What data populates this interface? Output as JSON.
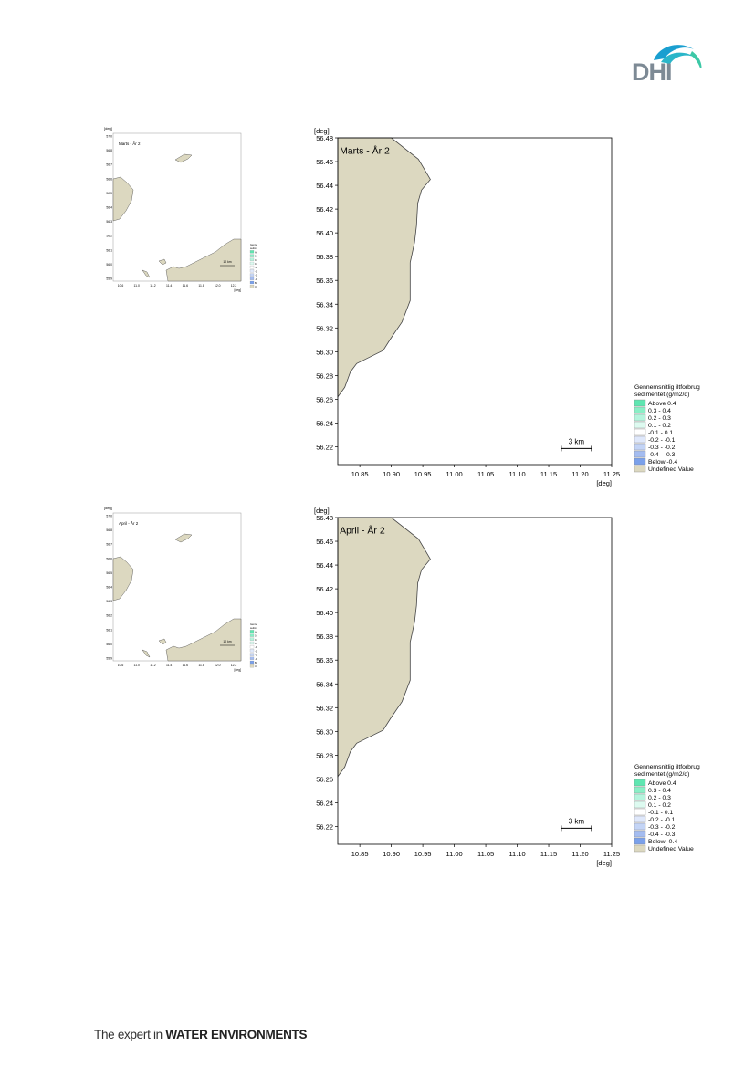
{
  "brand": {
    "logo_text": "DHI",
    "tagline_prefix": "The expert in ",
    "tagline_bold": "WATER ENVIRONMENTS"
  },
  "colors": {
    "land": "#dcd8c0",
    "coast": "#444444",
    "scale_bar": "#000000"
  },
  "legend": {
    "title_line1": "Gennemsnitlig iltforbrug",
    "title_line2": "sedimentet (g/m2/d)",
    "entries": [
      {
        "label": "Above  0.4",
        "color": "#5fe6b1"
      },
      {
        "label": "0.3 -  0.4",
        "color": "#8aefc6"
      },
      {
        "label": "0.2 -  0.3",
        "color": "#b5f4dd"
      },
      {
        "label": "0.1 -  0.2",
        "color": "#ddfaf0"
      },
      {
        "label": "-0.1 -  0.1",
        "color": "#ffffff"
      },
      {
        "label": "-0.2 - -0.1",
        "color": "#dfe8fb"
      },
      {
        "label": "-0.3 - -0.2",
        "color": "#c3d4f6"
      },
      {
        "label": "-0.4 - -0.3",
        "color": "#a4bcf0"
      },
      {
        "label": "Below -0.4",
        "color": "#7aa0ea"
      },
      {
        "label": "Undefined Value",
        "color": "#dcd8c0"
      }
    ]
  },
  "chart_data": [
    {
      "type": "map",
      "title": "Marts - År 2",
      "xlabel": "[deg]",
      "ylabel": "[deg]",
      "xlim": [
        10.815,
        11.25
      ],
      "ylim": [
        56.205,
        56.48
      ],
      "x_ticks": [
        "10.85",
        "10.90",
        "10.95",
        "11.00",
        "11.05",
        "11.10",
        "11.15",
        "11.20",
        "11.25"
      ],
      "y_ticks": [
        "56.48",
        "56.46",
        "56.44",
        "56.42",
        "56.40",
        "56.38",
        "56.36",
        "56.34",
        "56.32",
        "56.30",
        "56.28",
        "56.26",
        "56.24",
        "56.22"
      ],
      "scale_bar": "3 km",
      "overview": {
        "title": "Marts - År 2",
        "axis_label": "[deg]",
        "x_ticks": [
          "10.6",
          "11.0",
          "11.2",
          "11.4",
          "11.6",
          "11.8",
          "12.0",
          "12.2"
        ],
        "y_ticks": [
          "57.0",
          "56.8",
          "56.7",
          "56.6",
          "56.5",
          "56.4",
          "56.3",
          "56.2",
          "56.1",
          "56.0",
          "55.9"
        ],
        "scale_bar": "10 km",
        "legend_lines": [
          "Gennemsnitlig iltforbrug",
          "sedimentet (g/m2/d)",
          "Above 0.4",
          "0.3 - 0.4",
          "0.2 - 0.3",
          "0.1 - 0.2",
          "-0.1 - 0.1",
          "-0.2 - -0.1",
          "-0.3 - -0.2",
          "-0.4 - -0.3",
          "Below -0.4",
          "Undefined Value"
        ]
      }
    },
    {
      "type": "map",
      "title": "April - År 2",
      "xlabel": "[deg]",
      "ylabel": "[deg]",
      "xlim": [
        10.815,
        11.25
      ],
      "ylim": [
        56.205,
        56.48
      ],
      "x_ticks": [
        "10.85",
        "10.90",
        "10.95",
        "11.00",
        "11.05",
        "11.10",
        "11.15",
        "11.20",
        "11.25"
      ],
      "y_ticks": [
        "56.48",
        "56.46",
        "56.44",
        "56.42",
        "56.40",
        "56.38",
        "56.36",
        "56.34",
        "56.32",
        "56.30",
        "56.28",
        "56.26",
        "56.24",
        "56.22"
      ],
      "scale_bar": "3 km",
      "overview": {
        "title": "April - År 2",
        "axis_label": "[deg]",
        "x_ticks": [
          "10.6",
          "11.0",
          "11.2",
          "11.4",
          "11.6",
          "11.8",
          "12.0",
          "12.2"
        ],
        "y_ticks": [
          "57.0",
          "56.8",
          "56.7",
          "56.6",
          "56.5",
          "56.4",
          "56.3",
          "56.2",
          "56.1",
          "56.0",
          "55.9"
        ],
        "scale_bar": "10 km",
        "legend_lines": [
          "Gennemsnitlig iltforbrug",
          "sedimentet (g/m2/d)",
          "Above 0.4",
          "0.3 - 0.4",
          "0.2 - 0.3",
          "0.1 - 0.2",
          "-0.1 - 0.1",
          "-0.2 - -0.1",
          "-0.3 - -0.2",
          "-0.4 - -0.3",
          "Below -0.4",
          "Undefined Value"
        ]
      }
    }
  ]
}
